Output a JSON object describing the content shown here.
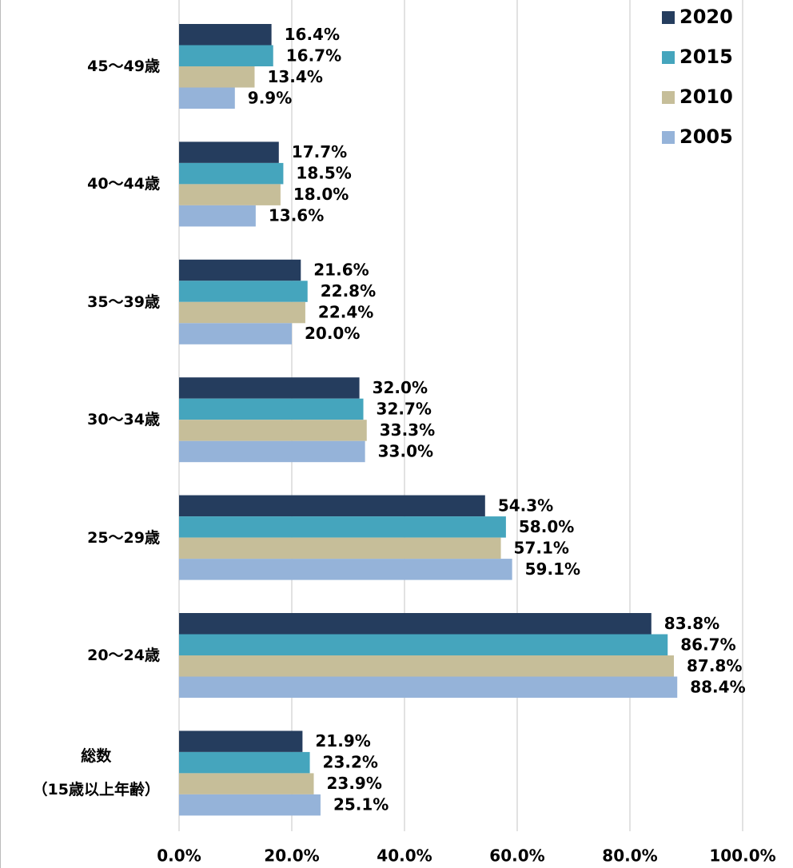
{
  "chart_data": {
    "type": "bar",
    "orientation": "horizontal",
    "categories": [
      "45〜49歳",
      "40〜44歳",
      "35〜39歳",
      "30〜34歳",
      "25〜29歳",
      "20〜24歳",
      "総数\n（15歳以上年齢）"
    ],
    "series": [
      {
        "name": "2020",
        "color": "#253d5e",
        "values": [
          16.4,
          17.7,
          21.6,
          32.0,
          54.3,
          83.8,
          21.9
        ],
        "value_labels": [
          "16.4%",
          "17.7%",
          "21.6%",
          "32.0%",
          "54.3%",
          "83.8%",
          "21.9%"
        ]
      },
      {
        "name": "2015",
        "color": "#45a5bd",
        "values": [
          16.7,
          18.5,
          22.8,
          32.7,
          58.0,
          86.7,
          23.2
        ],
        "value_labels": [
          "16.7%",
          "18.5%",
          "22.8%",
          "32.7%",
          "58.0%",
          "86.7%",
          "23.2%"
        ]
      },
      {
        "name": "2010",
        "color": "#c6be99",
        "values": [
          13.4,
          18.0,
          22.4,
          33.3,
          57.1,
          87.8,
          23.9
        ],
        "value_labels": [
          "13.4%",
          "18.0%",
          "22.4%",
          "33.3%",
          "57.1%",
          "87.8%",
          "23.9%"
        ]
      },
      {
        "name": "2005",
        "color": "#95b3d9",
        "values": [
          9.9,
          13.6,
          20.0,
          33.0,
          59.1,
          88.4,
          25.1
        ],
        "value_labels": [
          "9.9%",
          "13.6%",
          "20.0%",
          "33.0%",
          "59.1%",
          "88.4%",
          "25.1%"
        ]
      }
    ],
    "xlim": [
      0,
      100
    ],
    "xticks": [
      {
        "value": 0,
        "label": "0.0%"
      },
      {
        "value": 20,
        "label": "20.0%"
      },
      {
        "value": 40,
        "label": "40.0%"
      },
      {
        "value": 60,
        "label": "60.0%"
      },
      {
        "value": 80,
        "label": "80.0%"
      },
      {
        "value": 100,
        "label": "100.0%"
      }
    ],
    "grid": true,
    "legend": "top-right"
  }
}
